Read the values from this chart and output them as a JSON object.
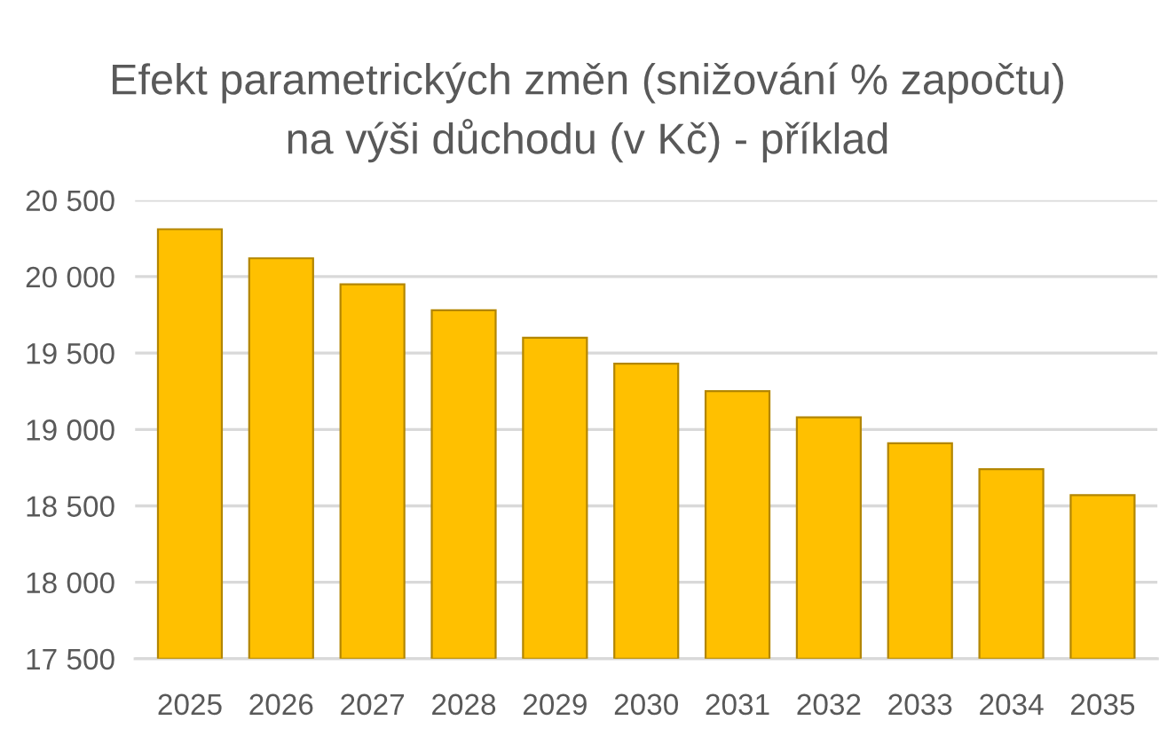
{
  "chart_data": {
    "type": "bar",
    "title": "Efekt parametrických změn (snižování % započtu)\nna výši důchodu (v Kč) - příklad",
    "categories": [
      "2025",
      "2026",
      "2027",
      "2028",
      "2029",
      "2030",
      "2031",
      "2032",
      "2033",
      "2034",
      "2035"
    ],
    "values": [
      20310,
      20120,
      19950,
      19780,
      19600,
      19430,
      19250,
      19080,
      18910,
      18740,
      18570
    ],
    "color": "#ffc000",
    "ylim": [
      17500,
      20500
    ],
    "yticks": [
      {
        "value": 17500,
        "label": "17 500"
      },
      {
        "value": 18000,
        "label": "18 000"
      },
      {
        "value": 18500,
        "label": "18 500"
      },
      {
        "value": 19000,
        "label": "19 000"
      },
      {
        "value": 19500,
        "label": "19 500"
      },
      {
        "value": 20000,
        "label": "20 000"
      },
      {
        "value": 20500,
        "label": "20 500"
      }
    ],
    "grid": "y"
  }
}
